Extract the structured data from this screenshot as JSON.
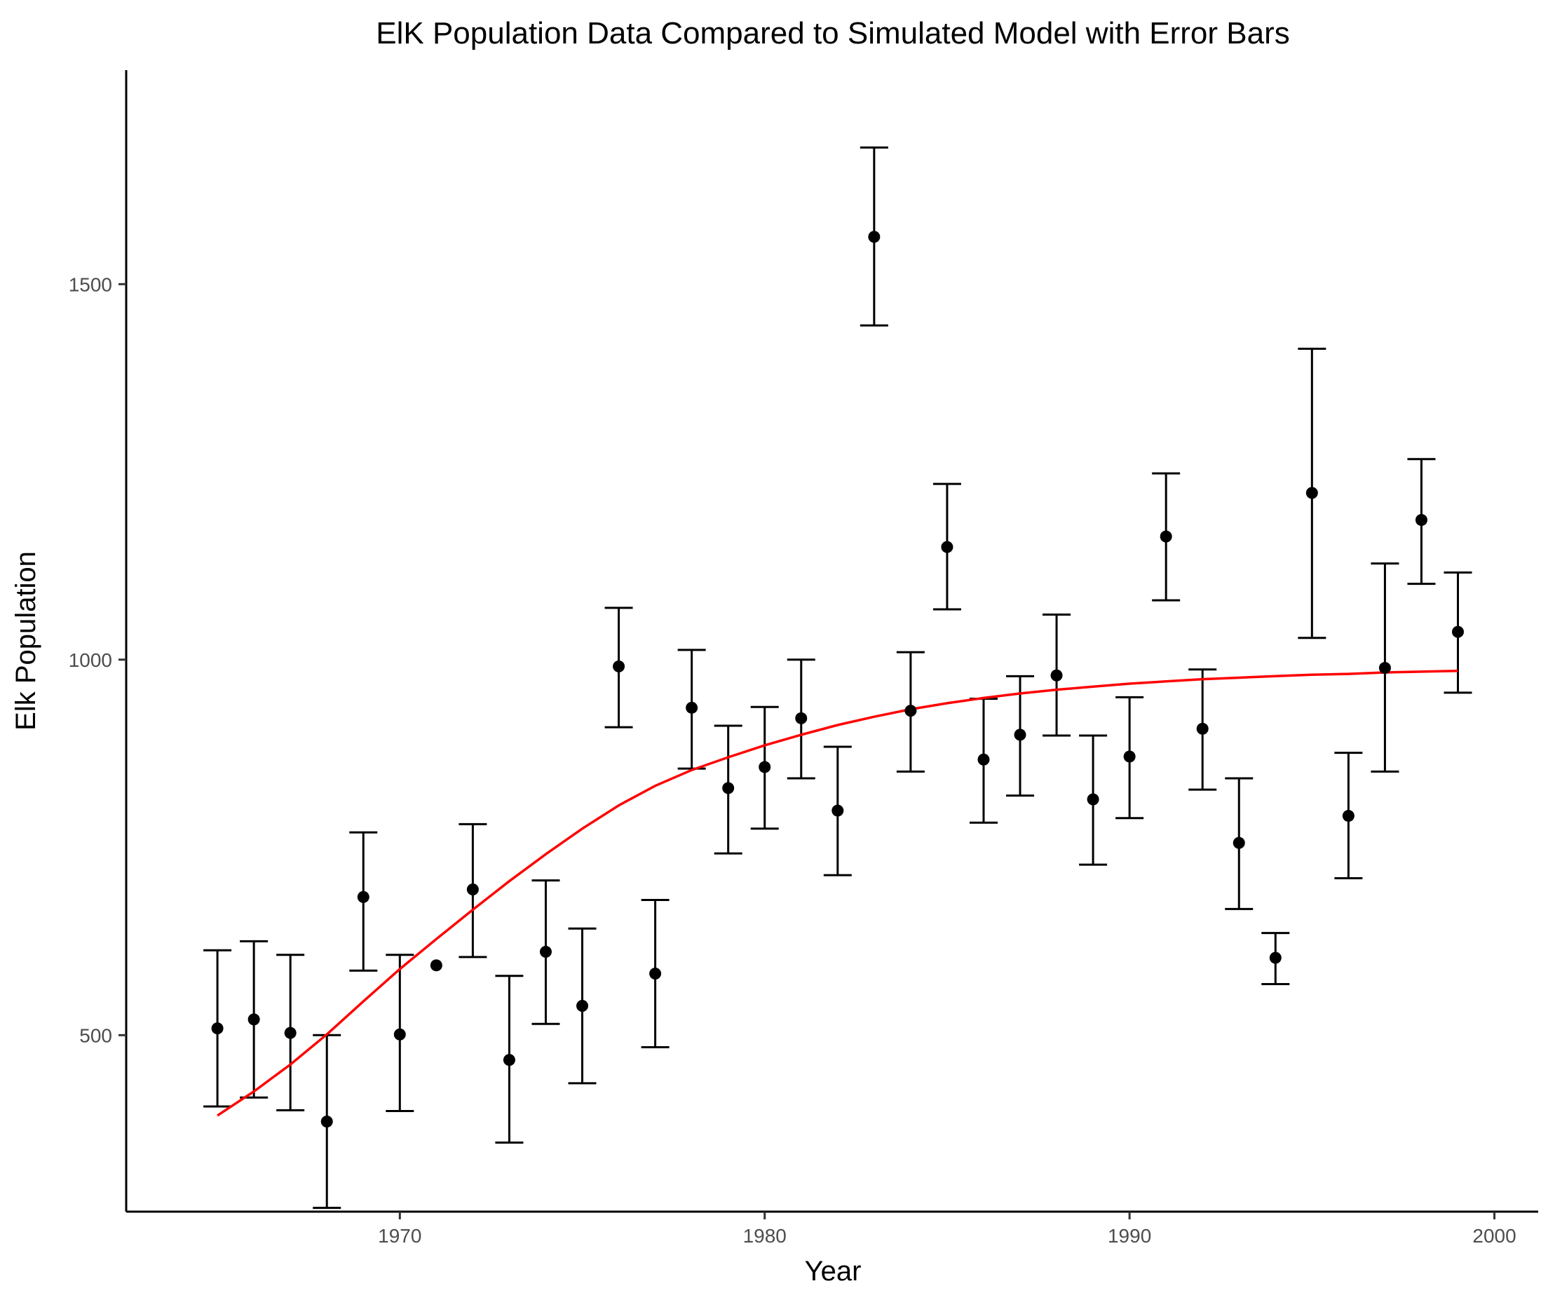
{
  "chart_data": {
    "type": "scatter",
    "title": "ElK Population Data Compared to Simulated Model with Error Bars",
    "xlabel": "Year",
    "ylabel": "Elk Population",
    "xlim": [
      1962.5,
      2001.2
    ],
    "ylim": [
      265,
      1785
    ],
    "x_ticks": [
      1970,
      1980,
      1990,
      2000
    ],
    "y_ticks": [
      500,
      1000,
      1500
    ],
    "grid": false,
    "colors": {
      "points": "#000000",
      "model": "#ff0000"
    },
    "series": [
      {
        "kind": "observed",
        "points": [
          {
            "x": 1965,
            "y": 509,
            "lo": 405,
            "hi": 613
          },
          {
            "x": 1966,
            "y": 521,
            "lo": 417,
            "hi": 625
          },
          {
            "x": 1967,
            "y": 503,
            "lo": 400,
            "hi": 607
          },
          {
            "x": 1968,
            "y": 385,
            "lo": 270,
            "hi": 500
          },
          {
            "x": 1969,
            "y": 684,
            "lo": 586,
            "hi": 770
          },
          {
            "x": 1970,
            "y": 501,
            "lo": 399,
            "hi": 607
          },
          {
            "x": 1971,
            "y": 593,
            "lo": null,
            "hi": null
          },
          {
            "x": 1972,
            "y": 694,
            "lo": 604,
            "hi": 781
          },
          {
            "x": 1973,
            "y": 467,
            "lo": 357,
            "hi": 579
          },
          {
            "x": 1974,
            "y": 611,
            "lo": 515,
            "hi": 706
          },
          {
            "x": 1975,
            "y": 539,
            "lo": 436,
            "hi": 642
          },
          {
            "x": 1976,
            "y": 991,
            "lo": 910,
            "hi": 1069
          },
          {
            "x": 1977,
            "y": 582,
            "lo": 484,
            "hi": 680
          },
          {
            "x": 1978,
            "y": 936,
            "lo": 855,
            "hi": 1013
          },
          {
            "x": 1979,
            "y": 829,
            "lo": 742,
            "hi": 912
          },
          {
            "x": 1980,
            "y": 857,
            "lo": 775,
            "hi": 937
          },
          {
            "x": 1981,
            "y": 922,
            "lo": 842,
            "hi": 1000
          },
          {
            "x": 1982,
            "y": 799,
            "lo": 713,
            "hi": 884
          },
          {
            "x": 1983,
            "y": 1563,
            "lo": 1445,
            "hi": 1682
          },
          {
            "x": 1984,
            "y": 932,
            "lo": 851,
            "hi": 1010
          },
          {
            "x": 1985,
            "y": 1150,
            "lo": 1067,
            "hi": 1234
          },
          {
            "x": 1986,
            "y": 867,
            "lo": 783,
            "hi": 948
          },
          {
            "x": 1987,
            "y": 900,
            "lo": 819,
            "hi": 978
          },
          {
            "x": 1988,
            "y": 979,
            "lo": 899,
            "hi": 1060
          },
          {
            "x": 1989,
            "y": 814,
            "lo": 727,
            "hi": 899
          },
          {
            "x": 1990,
            "y": 871,
            "lo": 789,
            "hi": 950
          },
          {
            "x": 1991,
            "y": 1164,
            "lo": 1079,
            "hi": 1248
          },
          {
            "x": 1992,
            "y": 908,
            "lo": 827,
            "hi": 987
          },
          {
            "x": 1993,
            "y": 756,
            "lo": 668,
            "hi": 842
          },
          {
            "x": 1994,
            "y": 603,
            "lo": 568,
            "hi": 636
          },
          {
            "x": 1995,
            "y": 1222,
            "lo": 1029,
            "hi": 1414
          },
          {
            "x": 1996,
            "y": 792,
            "lo": 709,
            "hi": 876
          },
          {
            "x": 1997,
            "y": 989,
            "lo": 851,
            "hi": 1128
          },
          {
            "x": 1998,
            "y": 1186,
            "lo": 1101,
            "hi": 1267
          },
          {
            "x": 1999,
            "y": 1037,
            "lo": 956,
            "hi": 1116
          }
        ]
      },
      {
        "kind": "model",
        "line": [
          {
            "x": 1965,
            "y": 393
          },
          {
            "x": 1966,
            "y": 425
          },
          {
            "x": 1967,
            "y": 461
          },
          {
            "x": 1968,
            "y": 501
          },
          {
            "x": 1969,
            "y": 545
          },
          {
            "x": 1970,
            "y": 588
          },
          {
            "x": 1971,
            "y": 628
          },
          {
            "x": 1972,
            "y": 667
          },
          {
            "x": 1973,
            "y": 705
          },
          {
            "x": 1974,
            "y": 741
          },
          {
            "x": 1975,
            "y": 775
          },
          {
            "x": 1976,
            "y": 806
          },
          {
            "x": 1977,
            "y": 832
          },
          {
            "x": 1978,
            "y": 853
          },
          {
            "x": 1979,
            "y": 870
          },
          {
            "x": 1980,
            "y": 886
          },
          {
            "x": 1981,
            "y": 900
          },
          {
            "x": 1982,
            "y": 913
          },
          {
            "x": 1983,
            "y": 924
          },
          {
            "x": 1984,
            "y": 934
          },
          {
            "x": 1985,
            "y": 942
          },
          {
            "x": 1986,
            "y": 949
          },
          {
            "x": 1987,
            "y": 955
          },
          {
            "x": 1988,
            "y": 960
          },
          {
            "x": 1989,
            "y": 964
          },
          {
            "x": 1990,
            "y": 968
          },
          {
            "x": 1991,
            "y": 971
          },
          {
            "x": 1992,
            "y": 974
          },
          {
            "x": 1993,
            "y": 976
          },
          {
            "x": 1994,
            "y": 978
          },
          {
            "x": 1995,
            "y": 980
          },
          {
            "x": 1996,
            "y": 981
          },
          {
            "x": 1997,
            "y": 983
          },
          {
            "x": 1998,
            "y": 984
          },
          {
            "x": 1999,
            "y": 985
          }
        ]
      }
    ]
  }
}
